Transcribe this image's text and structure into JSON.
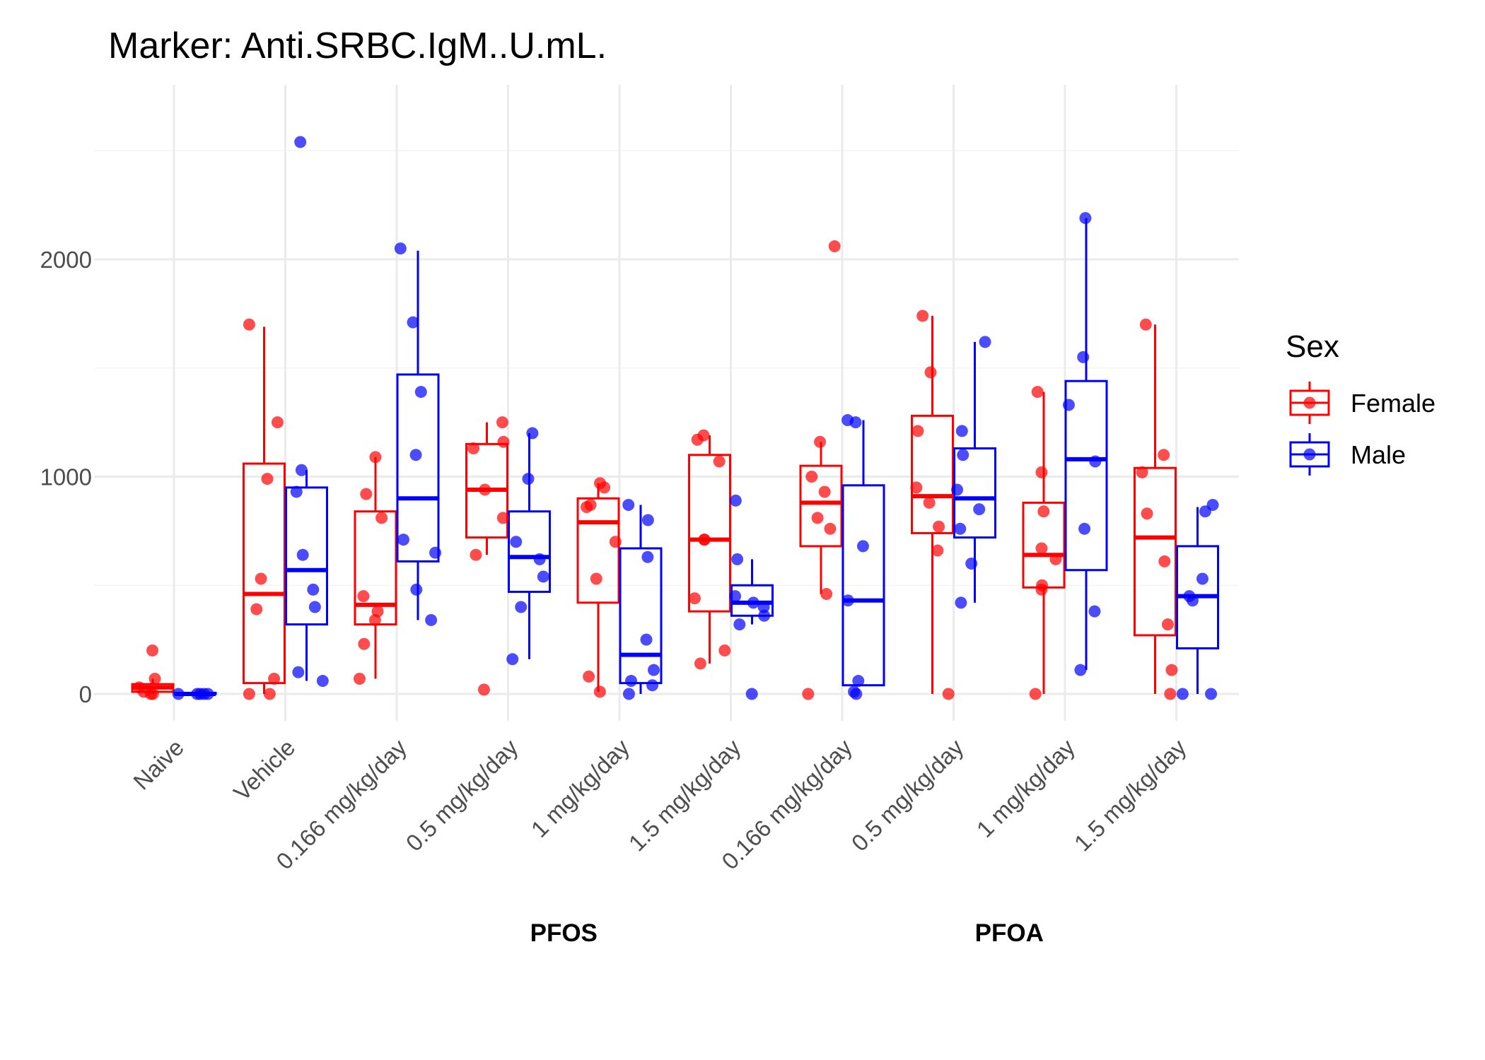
{
  "chart_data": {
    "type": "box",
    "title": "Marker: Anti.SRBC.IgM..U.mL.",
    "xlabel": "",
    "ylabel": "",
    "ylim": [
      -130,
      2800
    ],
    "y_ticks": [
      0,
      1000,
      2000
    ],
    "grid": true,
    "legend": {
      "title": "Sex",
      "position": "right",
      "entries": [
        "Female",
        "Male"
      ]
    },
    "colors": {
      "Female": "#ff0000",
      "Male": "#0000ff"
    },
    "categories": [
      "Naive",
      "Vehicle",
      "0.166 mg/kg/day",
      "0.5 mg/kg/day",
      "1 mg/kg/day",
      "1.5 mg/kg/day",
      "0.166 mg/kg/day",
      "0.5 mg/kg/day",
      "1 mg/kg/day",
      "1.5 mg/kg/day"
    ],
    "category_groups": [
      {
        "label": "PFOS",
        "start": 2,
        "end": 5
      },
      {
        "label": "PFOA",
        "start": 6,
        "end": 9
      }
    ],
    "series": [
      {
        "name": "Female",
        "boxes": [
          {
            "min": 0,
            "q1": 10,
            "median": 30,
            "q3": 45,
            "max": 70,
            "points": [
              200,
              70,
              30,
              10,
              0,
              0
            ]
          },
          {
            "min": 0,
            "q1": 50,
            "median": 460,
            "q3": 1060,
            "max": 1690,
            "points": [
              1700,
              1250,
              990,
              530,
              390,
              70,
              0,
              0
            ]
          },
          {
            "min": 70,
            "q1": 320,
            "median": 410,
            "q3": 840,
            "max": 1090,
            "points": [
              1090,
              920,
              810,
              450,
              380,
              340,
              230,
              70
            ]
          },
          {
            "min": 640,
            "q1": 720,
            "median": 940,
            "q3": 1150,
            "max": 1250,
            "points": [
              1250,
              1160,
              1130,
              940,
              810,
              640,
              20
            ]
          },
          {
            "min": 10,
            "q1": 420,
            "median": 790,
            "q3": 900,
            "max": 970,
            "points": [
              970,
              950,
              870,
              860,
              700,
              530,
              80,
              10
            ]
          },
          {
            "min": 140,
            "q1": 380,
            "median": 710,
            "q3": 1100,
            "max": 1190,
            "points": [
              1190,
              1170,
              1070,
              710,
              710,
              440,
              200,
              140
            ]
          },
          {
            "min": 460,
            "q1": 680,
            "median": 880,
            "q3": 1050,
            "max": 1160,
            "points": [
              2060,
              1160,
              1000,
              930,
              810,
              760,
              460,
              0
            ]
          },
          {
            "min": 0,
            "q1": 740,
            "median": 910,
            "q3": 1280,
            "max": 1740,
            "points": [
              1740,
              1480,
              1210,
              950,
              880,
              770,
              660,
              0
            ]
          },
          {
            "min": 0,
            "q1": 490,
            "median": 640,
            "q3": 880,
            "max": 1390,
            "points": [
              1390,
              1020,
              840,
              670,
              620,
              500,
              480,
              0
            ]
          },
          {
            "min": 0,
            "q1": 270,
            "median": 720,
            "q3": 1040,
            "max": 1700,
            "points": [
              1700,
              1100,
              1020,
              830,
              610,
              320,
              110,
              0
            ]
          }
        ]
      },
      {
        "name": "Male",
        "boxes": [
          {
            "min": 0,
            "q1": 0,
            "median": 0,
            "q3": 5,
            "max": 5,
            "points": [
              0,
              0,
              0,
              0,
              0
            ]
          },
          {
            "min": 60,
            "q1": 320,
            "median": 570,
            "q3": 950,
            "max": 1030,
            "points": [
              2540,
              1030,
              930,
              640,
              480,
              400,
              100,
              60
            ]
          },
          {
            "min": 340,
            "q1": 610,
            "median": 900,
            "q3": 1470,
            "max": 2040,
            "points": [
              2050,
              1710,
              1390,
              1100,
              710,
              650,
              480,
              340
            ]
          },
          {
            "min": 160,
            "q1": 470,
            "median": 630,
            "q3": 840,
            "max": 1200,
            "points": [
              1200,
              990,
              700,
              620,
              540,
              400,
              160
            ]
          },
          {
            "min": 0,
            "q1": 50,
            "median": 180,
            "q3": 670,
            "max": 870,
            "points": [
              870,
              800,
              630,
              250,
              110,
              60,
              40,
              0
            ]
          },
          {
            "min": 320,
            "q1": 360,
            "median": 420,
            "q3": 500,
            "max": 620,
            "points": [
              890,
              620,
              450,
              420,
              400,
              360,
              320,
              0
            ]
          },
          {
            "min": 40,
            "q1": 40,
            "median": 430,
            "q3": 960,
            "max": 1260,
            "points": [
              1260,
              1250,
              680,
              430,
              60,
              10,
              0
            ]
          },
          {
            "min": 420,
            "q1": 720,
            "median": 900,
            "q3": 1130,
            "max": 1620,
            "points": [
              1620,
              1210,
              1100,
              940,
              850,
              760,
              600,
              420
            ]
          },
          {
            "min": 110,
            "q1": 570,
            "median": 1080,
            "q3": 1440,
            "max": 2190,
            "points": [
              2190,
              1550,
              1330,
              1070,
              760,
              380,
              110
            ]
          },
          {
            "min": 0,
            "q1": 210,
            "median": 450,
            "q3": 680,
            "max": 860,
            "points": [
              870,
              840,
              530,
              450,
              430,
              0,
              0
            ]
          }
        ]
      }
    ]
  }
}
